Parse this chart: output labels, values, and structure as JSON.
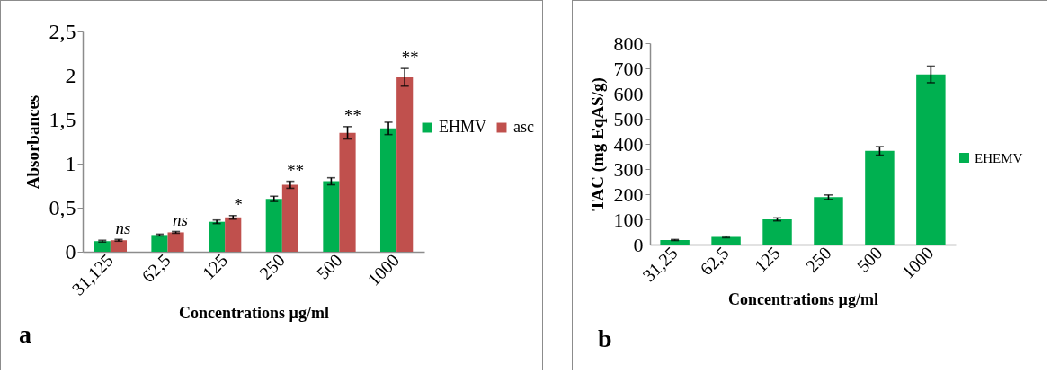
{
  "chart_data": [
    {
      "type": "bar",
      "categories": [
        "31,125",
        "62,5",
        "125",
        "250",
        "500",
        "1000"
      ],
      "series": [
        {
          "name": "EHMV",
          "color": "#00b050",
          "values": [
            0.12,
            0.19,
            0.34,
            0.6,
            0.8,
            1.4
          ],
          "errors": [
            0.01,
            0.01,
            0.02,
            0.03,
            0.04,
            0.07
          ]
        },
        {
          "name": "asc",
          "color": "#c0504d",
          "values": [
            0.13,
            0.22,
            0.39,
            0.76,
            1.35,
            1.98
          ],
          "errors": [
            0.01,
            0.01,
            0.02,
            0.04,
            0.07,
            0.1
          ]
        }
      ],
      "ylim": [
        0,
        2.5
      ],
      "yticks": [
        0,
        {
          "value": 0.5,
          "label": "0,5"
        },
        1,
        {
          "value": 1.5,
          "label": "1,5"
        },
        2,
        {
          "value": 2.5,
          "label": "2,5"
        }
      ],
      "xlabel": "Concentrations µg/ml",
      "ylabel": "Absorbances",
      "legend": "right",
      "grid": false,
      "annotations": [
        {
          "text": "ns",
          "x": "31,125",
          "y": 0.13
        },
        {
          "text": "ns",
          "x": "62,5",
          "y": 0.22
        },
        {
          "text": "*",
          "x": "125",
          "y": 0.39
        },
        {
          "text": "**",
          "x": "250",
          "y": 0.76
        },
        {
          "text": "**",
          "x": "500",
          "y": 1.35
        },
        {
          "text": "**",
          "x": "1000",
          "y": 1.98
        },
        "a"
      ]
    },
    {
      "type": "bar",
      "categories": [
        "31,25",
        "62,5",
        "125",
        "250",
        "500",
        "1000"
      ],
      "series": [
        {
          "name": "EHEMV",
          "color": "#00b050",
          "values": [
            18,
            30,
            100,
            188,
            372,
            676
          ],
          "errors": [
            2,
            3,
            6,
            9,
            17,
            33
          ]
        }
      ],
      "ylim": [
        0,
        800
      ],
      "yticks": [
        0,
        100,
        200,
        300,
        400,
        500,
        600,
        700,
        800
      ],
      "xlabel": "Concentrations µg/ml",
      "ylabel": "TAC (mg EqAS/g)",
      "legend": "right",
      "grid": false,
      "annotations": [
        "b"
      ]
    }
  ]
}
